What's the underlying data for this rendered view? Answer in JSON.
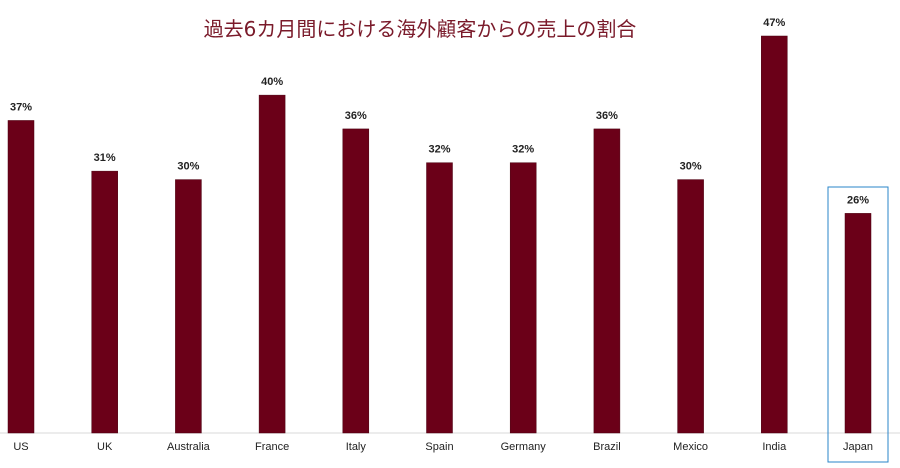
{
  "chart_data": {
    "type": "bar",
    "title": "過去6カ月間における海外顧客からの売上の割合",
    "xlabel": "",
    "ylabel": "",
    "categories": [
      "US",
      "UK",
      "Australia",
      "France",
      "Italy",
      "Spain",
      "Germany",
      "Brazil",
      "Mexico",
      "India",
      "Japan"
    ],
    "values": [
      37,
      31,
      30,
      40,
      36,
      32,
      32,
      36,
      30,
      47,
      26
    ],
    "value_labels": [
      "37%",
      "31%",
      "30%",
      "40%",
      "36%",
      "32%",
      "32%",
      "36%",
      "30%",
      "47%",
      "26%"
    ],
    "value_unit": "%",
    "ylim": [
      0,
      47
    ],
    "grid": false,
    "legend": "none",
    "highlighted_category": "Japan"
  },
  "colors": {
    "title": "#7a1a2a",
    "bar": "#6b0018",
    "bar_edge": "#4a0010",
    "highlight_box": "#2a85c9",
    "axis": "#d9d9d9"
  }
}
